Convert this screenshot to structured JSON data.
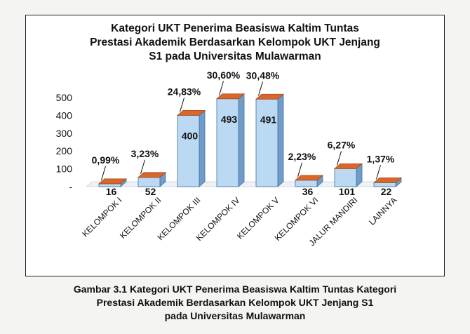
{
  "chart_data": {
    "type": "bar",
    "title_lines": [
      "Kategori UKT Penerima Beasiswa Kaltim Tuntas",
      "Prestasi Akademik Berdasarkan Kelompok UKT Jenjang",
      "S1 pada Universitas Mulawarman"
    ],
    "categories": [
      "KELOMPOK I",
      "KELOMPOK II",
      "KELOMPOK III",
      "KELOMPOK IV",
      "KELOMPOK V",
      "KELOMPOK VI",
      "JALUR MANDIRI",
      "LAINNYA"
    ],
    "values": [
      16,
      52,
      400,
      493,
      491,
      36,
      101,
      22
    ],
    "percent_labels": [
      "0,99%",
      "3,23%",
      "24,83%",
      "30,60%",
      "30,48%",
      "2,23%",
      "6,27%",
      "1,37%"
    ],
    "y_ticks": [
      {
        "value": 0,
        "label": "-"
      },
      {
        "value": 100,
        "label": "100"
      },
      {
        "value": 200,
        "label": "200"
      },
      {
        "value": 300,
        "label": "300"
      },
      {
        "value": 400,
        "label": "400"
      },
      {
        "value": 500,
        "label": "500"
      }
    ],
    "ylim": [
      0,
      500
    ],
    "grid": false,
    "legend": "none",
    "colors": {
      "bar_front": "#bcd9f3",
      "bar_side": "#6f9cc8",
      "bar_top": "#d9662b",
      "bar_edge": "#3f6f9d"
    }
  },
  "caption_lines": [
    "Gambar 3.1 Kategori UKT Penerima Beasiswa Kaltim Tuntas Kategori",
    "Prestasi Akademik Berdasarkan Kelompok UKT Jenjang S1",
    "pada Universitas Mulawarman"
  ]
}
